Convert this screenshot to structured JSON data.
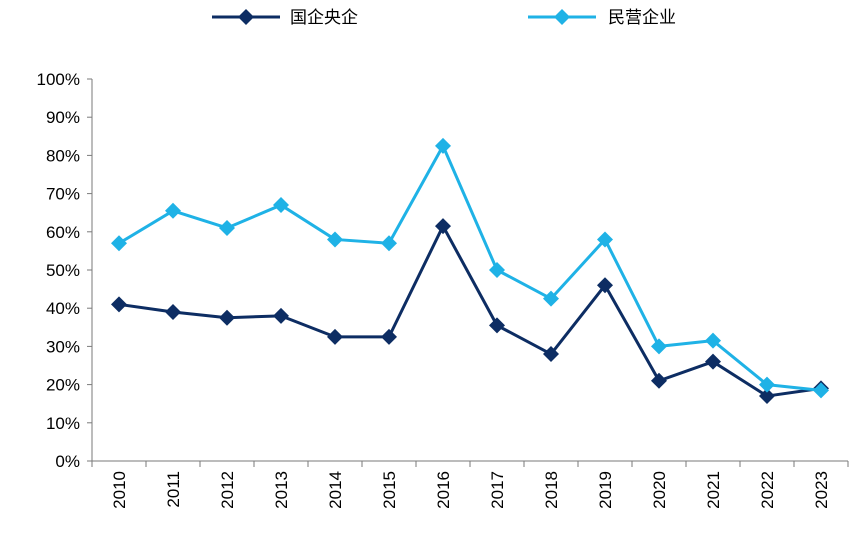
{
  "chart_data": {
    "type": "line",
    "title": "",
    "xlabel": "",
    "ylabel": "",
    "categories": [
      "2010",
      "2011",
      "2012",
      "2013",
      "2014",
      "2015",
      "2016",
      "2017",
      "2018",
      "2019",
      "2020",
      "2021",
      "2022",
      "2023"
    ],
    "series": [
      {
        "name": "国企央企",
        "color": "#0d2d63",
        "values": [
          41,
          39,
          37.5,
          38,
          32.5,
          32.5,
          61.5,
          35.5,
          28,
          46,
          21,
          26,
          17,
          19
        ]
      },
      {
        "name": "民营企业",
        "color": "#1fb2e6",
        "values": [
          57,
          65.5,
          61,
          67,
          58,
          57,
          82.5,
          50,
          42.5,
          58,
          30,
          31.5,
          20,
          18.5
        ]
      }
    ],
    "y_ticks": [
      "0%",
      "10%",
      "20%",
      "30%",
      "40%",
      "50%",
      "60%",
      "70%",
      "80%",
      "90%",
      "100%"
    ],
    "ylim": [
      0,
      100
    ],
    "grid": false,
    "legend_position": "top",
    "marker": "diamond"
  }
}
